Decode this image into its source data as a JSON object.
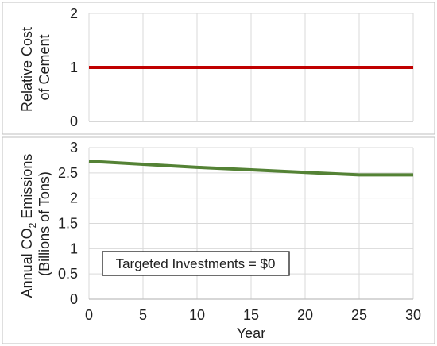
{
  "chart_data": [
    {
      "type": "line",
      "panel": "top",
      "xlabel": "",
      "ylabel_lines": [
        "Relative Cost",
        "of Cement"
      ],
      "ylim": [
        0,
        2
      ],
      "yticks": [
        "0",
        "1",
        "2"
      ],
      "xlim": [
        0,
        30
      ],
      "grid": true,
      "legend": "none",
      "series": [
        {
          "x": [
            0,
            5,
            10,
            15,
            20,
            25,
            30
          ],
          "values": [
            1,
            1,
            1,
            1,
            1,
            1,
            1
          ],
          "color": "#c00000"
        }
      ]
    },
    {
      "type": "line",
      "panel": "bottom",
      "xlabel": "Year",
      "ylabel_lines": [
        "Annual CO",
        "2",
        " Emissions",
        "(Billions of Tons)"
      ],
      "ylim": [
        0,
        3
      ],
      "yticks": [
        "0",
        "0.5",
        "1",
        "1.5",
        "2",
        "2.5",
        "3"
      ],
      "xlim": [
        0,
        30
      ],
      "xticks": [
        "0",
        "5",
        "10",
        "15",
        "20",
        "25",
        "30"
      ],
      "grid": true,
      "legend": "none",
      "annotation": "Targeted Investments = $0",
      "series": [
        {
          "x": [
            0,
            5,
            10,
            15,
            20,
            25,
            30
          ],
          "values": [
            2.73,
            2.67,
            2.61,
            2.56,
            2.51,
            2.46,
            2.46
          ],
          "color": "#548235"
        }
      ]
    }
  ]
}
